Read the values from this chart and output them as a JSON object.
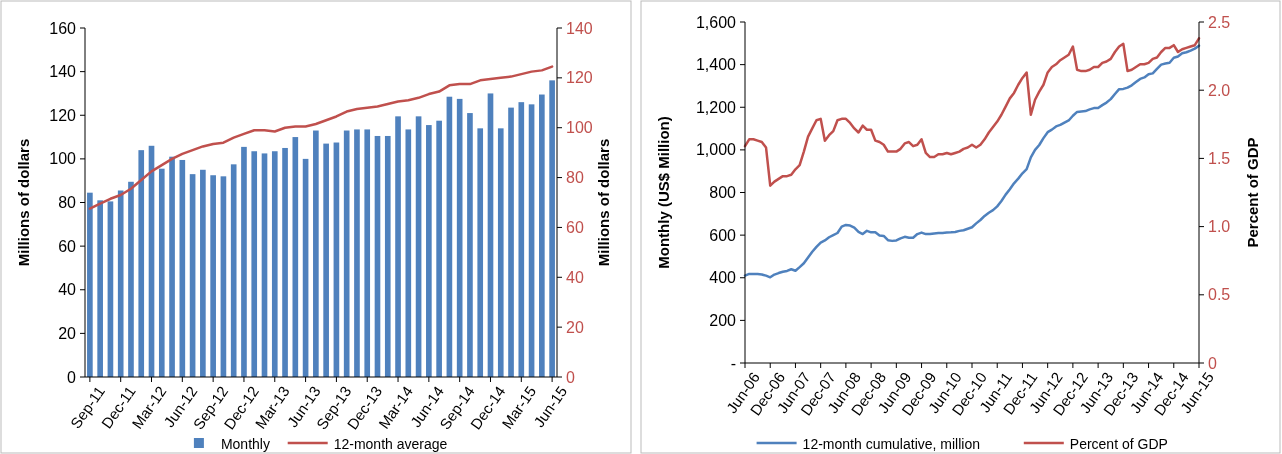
{
  "chart_data": [
    {
      "type": "bar",
      "categories": [
        "Sep-11",
        null,
        null,
        "Dec-11",
        null,
        null,
        "Mar-12",
        null,
        null,
        "Jun-12",
        null,
        null,
        "Sep-12",
        null,
        null,
        "Dec-12",
        null,
        null,
        "Mar-13",
        null,
        null,
        "Jun-13",
        null,
        null,
        "Sep-13",
        null,
        null,
        "Dec-13",
        null,
        null,
        "Mar-14",
        null,
        null,
        "Jun-14",
        null,
        null,
        "Sep-14",
        null,
        null,
        "Dec-14",
        null,
        null,
        "Mar-15",
        null,
        null,
        "Jun-15"
      ],
      "series": [
        {
          "name": "Monthly",
          "type": "bar",
          "color": "#4f81bd",
          "values": [
            84.5,
            81,
            80.5,
            85.5,
            89.5,
            104,
            106,
            95.5,
            101,
            99.5,
            93,
            95,
            92.5,
            92,
            97.5,
            105.5,
            103.5,
            102.5,
            103.5,
            105,
            110,
            100,
            113,
            107,
            107.5,
            113,
            113.5,
            113.5,
            110.5,
            110.5,
            119.5,
            113.5,
            119.5,
            115.5,
            117.5,
            128.5,
            127.5,
            121,
            114,
            130,
            114,
            123.5,
            126,
            125,
            129.5,
            136
          ]
        },
        {
          "name": "12-month average",
          "type": "line",
          "axis": "y2",
          "color": "#c0504d",
          "values": [
            67.5,
            69.5,
            71.5,
            73,
            75.5,
            79,
            82.5,
            85,
            87.5,
            89.5,
            91,
            92.5,
            93.5,
            94,
            96,
            97.5,
            99,
            99,
            98.5,
            100,
            100.5,
            100.5,
            101.5,
            103,
            104.5,
            106.5,
            107.5,
            108,
            108.5,
            109.5,
            110.5,
            111,
            112,
            113.5,
            114.5,
            117,
            117.5,
            117.5,
            119,
            119.5,
            120,
            120.5,
            121.5,
            122.5,
            123,
            124.5
          ]
        }
      ],
      "ylabel": "Millions of dollars",
      "y2label": "Millions of dollars",
      "ylim": [
        0,
        160
      ],
      "yticks": [
        0,
        20,
        40,
        60,
        80,
        100,
        120,
        140,
        160
      ],
      "y2lim": [
        0,
        140
      ],
      "y2ticks": [
        0,
        20,
        40,
        60,
        80,
        100,
        120,
        140
      ],
      "legend": "bottom",
      "grid": false
    },
    {
      "type": "line",
      "categories": [
        "Jun-06",
        null,
        null,
        null,
        null,
        null,
        "Dec-06",
        null,
        null,
        null,
        null,
        null,
        "Jun-07",
        null,
        null,
        null,
        null,
        null,
        "Dec-07",
        null,
        null,
        null,
        null,
        null,
        "Jun-08",
        null,
        null,
        null,
        null,
        null,
        "Dec-08",
        null,
        null,
        null,
        null,
        null,
        "Jun-09",
        null,
        null,
        null,
        null,
        null,
        "Dec-09",
        null,
        null,
        null,
        null,
        null,
        "Jun-10",
        null,
        null,
        null,
        null,
        null,
        "Dec-10",
        null,
        null,
        null,
        null,
        null,
        "Jun-11",
        null,
        null,
        null,
        null,
        null,
        "Dec-11",
        null,
        null,
        null,
        null,
        null,
        "Jun-12",
        null,
        null,
        null,
        null,
        null,
        "Dec-12",
        null,
        null,
        null,
        null,
        null,
        "Jun-13",
        null,
        null,
        null,
        null,
        null,
        "Dec-13",
        null,
        null,
        null,
        null,
        null,
        "Jun-14",
        null,
        null,
        null,
        null,
        null,
        "Dec-14",
        null,
        null,
        null,
        null,
        null,
        "Jun-15"
      ],
      "series": [
        {
          "name": "12-month cumulative, million",
          "type": "line",
          "color": "#4f81bd",
          "values": [
            410,
            418,
            418,
            418,
            415,
            410,
            402,
            415,
            422,
            428,
            432,
            440,
            433,
            450,
            468,
            495,
            522,
            545,
            565,
            575,
            590,
            600,
            610,
            640,
            648,
            645,
            635,
            615,
            605,
            620,
            613,
            613,
            598,
            596,
            576,
            573,
            575,
            585,
            592,
            588,
            588,
            605,
            612,
            605,
            605,
            608,
            610,
            610,
            612,
            613,
            615,
            620,
            623,
            630,
            637,
            655,
            671,
            690,
            705,
            717,
            735,
            760,
            790,
            815,
            843,
            865,
            890,
            910,
            965,
            1000,
            1023,
            1055,
            1083,
            1095,
            1110,
            1117,
            1128,
            1138,
            1160,
            1178,
            1180,
            1182,
            1190,
            1196,
            1196,
            1210,
            1222,
            1238,
            1262,
            1285,
            1286,
            1292,
            1303,
            1318,
            1333,
            1340,
            1355,
            1359,
            1380,
            1400,
            1405,
            1409,
            1432,
            1438,
            1453,
            1458,
            1466,
            1475,
            1489
          ]
        },
        {
          "name": "Percent of GDP",
          "type": "line",
          "axis": "y2",
          "color": "#c0504d",
          "values": [
            1.59,
            1.64,
            1.64,
            1.63,
            1.62,
            1.58,
            1.3,
            1.33,
            1.35,
            1.37,
            1.37,
            1.38,
            1.42,
            1.45,
            1.55,
            1.66,
            1.72,
            1.78,
            1.79,
            1.63,
            1.67,
            1.7,
            1.78,
            1.79,
            1.79,
            1.76,
            1.72,
            1.69,
            1.74,
            1.71,
            1.71,
            1.63,
            1.62,
            1.6,
            1.55,
            1.55,
            1.55,
            1.57,
            1.61,
            1.62,
            1.59,
            1.6,
            1.64,
            1.54,
            1.51,
            1.51,
            1.53,
            1.53,
            1.54,
            1.53,
            1.54,
            1.55,
            1.57,
            1.58,
            1.6,
            1.58,
            1.6,
            1.64,
            1.69,
            1.73,
            1.77,
            1.82,
            1.88,
            1.94,
            1.98,
            2.04,
            2.09,
            2.13,
            1.82,
            1.93,
            1.99,
            2.04,
            2.13,
            2.17,
            2.19,
            2.22,
            2.24,
            2.26,
            2.32,
            2.15,
            2.14,
            2.14,
            2.15,
            2.17,
            2.17,
            2.2,
            2.21,
            2.23,
            2.28,
            2.32,
            2.34,
            2.14,
            2.15,
            2.17,
            2.19,
            2.19,
            2.2,
            2.23,
            2.24,
            2.28,
            2.31,
            2.31,
            2.33,
            2.28,
            2.3,
            2.31,
            2.32,
            2.33,
            2.38
          ]
        }
      ],
      "ylabel": "Monthly (US$ Million)",
      "y2label": "Percent of GDP",
      "ylim": [
        0,
        1600
      ],
      "yticks": [
        {
          "value": 0,
          "label": "-"
        },
        200,
        400,
        600,
        800,
        {
          "value": 1000,
          "label": "1,000"
        },
        {
          "value": 1200,
          "label": "1,200"
        },
        {
          "value": 1400,
          "label": "1,400"
        },
        {
          "value": 1600,
          "label": "1,600"
        }
      ],
      "y2lim": [
        0,
        2.5
      ],
      "y2ticks": [
        0,
        0.5,
        {
          "value": 1,
          "label": "1.0"
        },
        1.5,
        {
          "value": 2,
          "label": "2.0"
        },
        2.5
      ],
      "legend": "bottom",
      "grid": false
    }
  ]
}
